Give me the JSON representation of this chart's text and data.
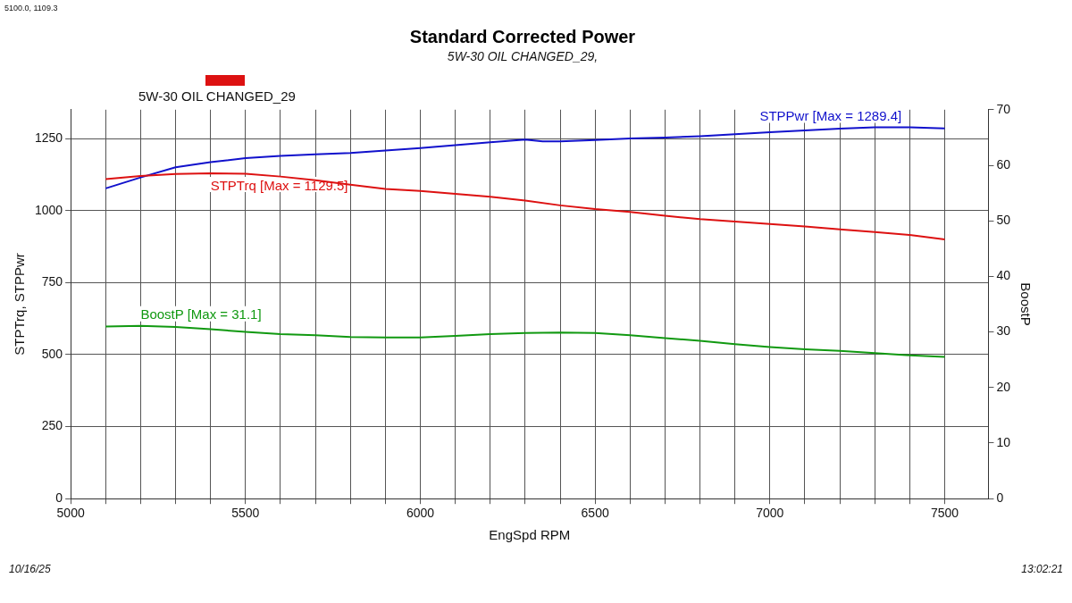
{
  "chart_data": {
    "type": "line",
    "title": "Standard Corrected Power",
    "subtitle": "5W-30 OIL CHANGED_29,",
    "legend_title": "5W-30 OIL CHANGED_29",
    "legend": "top left",
    "xlabel": "EngSpd RPM",
    "ylabel": "STPTrq, STPPwr",
    "y2label": "BoostP",
    "annotations": [
      "5100.0, 1109.3",
      "10/16/25",
      "13:02:21"
    ],
    "xlim": [
      5000,
      7625
    ],
    "ylim": [
      0,
      1350
    ],
    "y2lim": [
      0,
      70
    ],
    "xticks": [
      5000,
      {
        "value": 5100,
        "label": null
      },
      {
        "value": 5200,
        "label": null
      },
      {
        "value": 5300,
        "label": null
      },
      {
        "value": 5400,
        "label": null
      },
      5500,
      {
        "value": 5600,
        "label": null
      },
      {
        "value": 5700,
        "label": null
      },
      {
        "value": 5800,
        "label": null
      },
      {
        "value": 5900,
        "label": null
      },
      6000,
      {
        "value": 6100,
        "label": null
      },
      {
        "value": 6200,
        "label": null
      },
      {
        "value": 6300,
        "label": null
      },
      {
        "value": 6400,
        "label": null
      },
      6500,
      {
        "value": 6600,
        "label": null
      },
      {
        "value": 6700,
        "label": null
      },
      {
        "value": 6800,
        "label": null
      },
      {
        "value": 6900,
        "label": null
      },
      7000,
      {
        "value": 7100,
        "label": null
      },
      {
        "value": 7200,
        "label": null
      },
      {
        "value": 7300,
        "label": null
      },
      {
        "value": 7400,
        "label": null
      },
      7500
    ],
    "yticks": [
      0,
      250,
      500,
      750,
      1000,
      1250
    ],
    "y2ticks": [
      0,
      10,
      20,
      30,
      40,
      50,
      60,
      70
    ],
    "grid": true,
    "marker": "none",
    "line_style": "solid",
    "series": [
      {
        "name": "STPTrq [Max = 1129.5]",
        "color": "#dd1111",
        "x": [
          5100,
          5200,
          5300,
          5400,
          5500,
          5600,
          5700,
          5800,
          5900,
          6000,
          6100,
          6200,
          6300,
          6400,
          6500,
          6600,
          6700,
          6800,
          6900,
          7000,
          7100,
          7200,
          7300,
          7400,
          7500
        ],
        "values": [
          1109,
          1120,
          1127,
          1129.5,
          1128,
          1118,
          1105,
          1090,
          1075,
          1068,
          1058,
          1048,
          1035,
          1018,
          1005,
          995,
          982,
          970,
          962,
          953,
          945,
          935,
          925,
          915,
          900
        ]
      },
      {
        "name": "STPPwr [Max = 1289.4]",
        "color": "#1111cc",
        "x": [
          5100,
          5200,
          5300,
          5400,
          5500,
          5600,
          5700,
          5800,
          5900,
          6000,
          6100,
          6200,
          6300,
          6350,
          6400,
          6500,
          6600,
          6700,
          6800,
          6900,
          7000,
          7100,
          7200,
          7300,
          7400,
          7500
        ],
        "values": [
          1077,
          1115,
          1150,
          1168,
          1182,
          1190,
          1195,
          1200,
          1208,
          1217,
          1227,
          1237,
          1246,
          1240,
          1240,
          1245,
          1250,
          1253,
          1258,
          1265,
          1272,
          1278,
          1284,
          1289,
          1289,
          1285
        ]
      },
      {
        "name": "BoostP [Max = 31.1]",
        "color": "#119911",
        "axis": "y2",
        "x": [
          5100,
          5200,
          5300,
          5400,
          5500,
          5600,
          5700,
          5800,
          5900,
          6000,
          6100,
          6200,
          6300,
          6400,
          6500,
          6600,
          6700,
          6800,
          6900,
          7000,
          7100,
          7200,
          7300,
          7400,
          7500
        ],
        "values": [
          31.0,
          31.1,
          30.9,
          30.5,
          30.0,
          29.6,
          29.4,
          29.1,
          29.0,
          29.0,
          29.3,
          29.6,
          29.8,
          29.9,
          29.8,
          29.4,
          28.9,
          28.4,
          27.8,
          27.3,
          26.9,
          26.6,
          26.2,
          25.8,
          25.5
        ]
      }
    ]
  }
}
